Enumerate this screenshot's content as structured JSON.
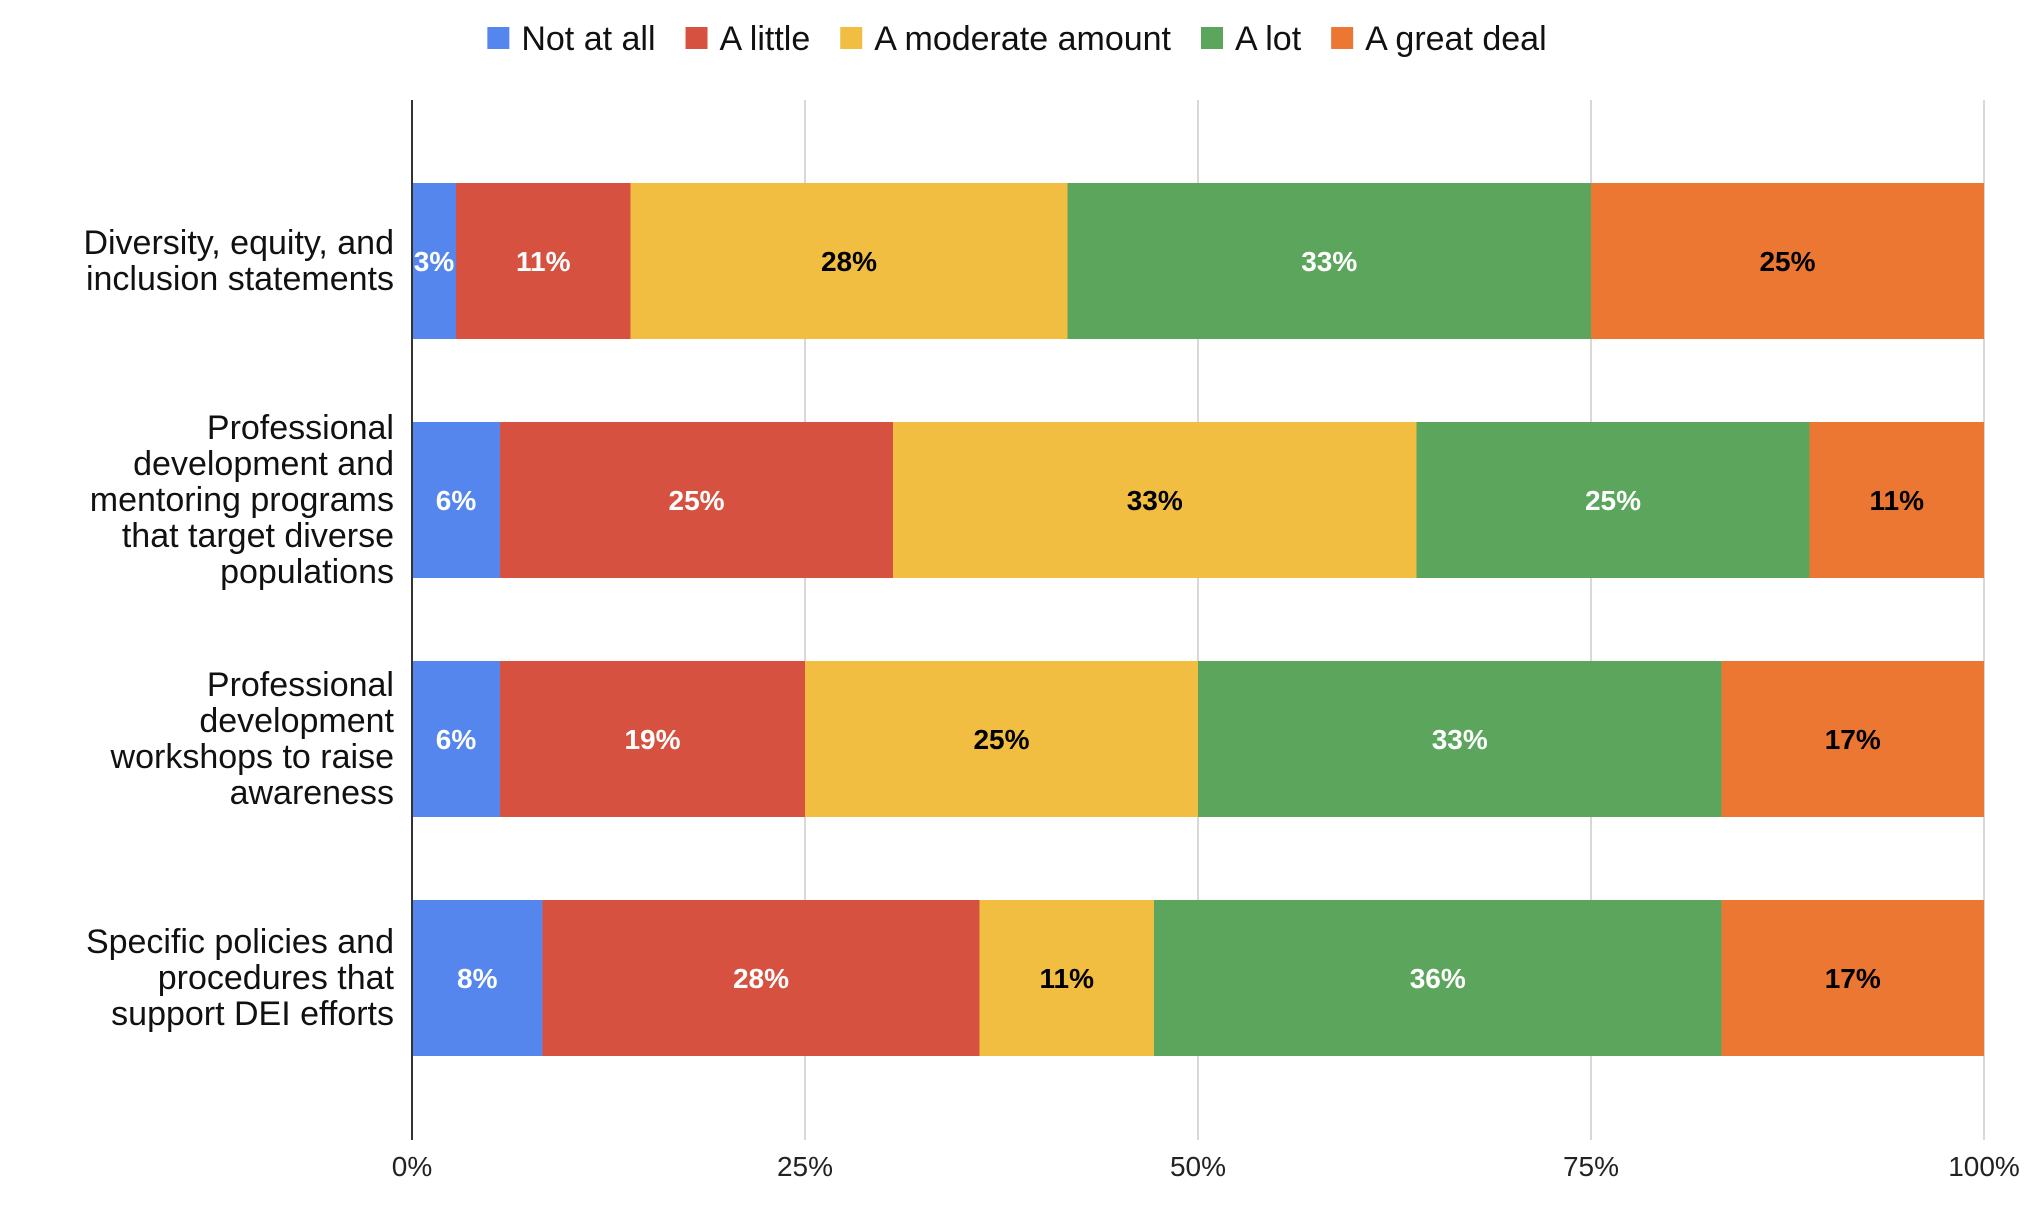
{
  "chart_data": {
    "type": "bar",
    "orientation": "horizontal",
    "stacked": true,
    "normalized": true,
    "title": "",
    "xlabel": "",
    "ylabel": "",
    "xlim": [
      0,
      100
    ],
    "x_ticks": [
      {
        "value": 0,
        "label": "0%"
      },
      {
        "value": 25,
        "label": "25%"
      },
      {
        "value": 50,
        "label": "50%"
      },
      {
        "value": 75,
        "label": "75%"
      },
      {
        "value": 100,
        "label": "100%"
      }
    ],
    "grid": true,
    "legend_position": "top",
    "categories": [
      {
        "label": "Diversity, equity, and inclusion statements"
      },
      {
        "label": "Professional development and mentoring programs that target diverse populations"
      },
      {
        "label": "Professional development workshops to raise awareness"
      },
      {
        "label": "Specific policies and procedures that support DEI efforts"
      }
    ],
    "series": [
      {
        "name": "Not at all",
        "color": "#5586EE",
        "label_color": "#ffffff",
        "values": [
          2.8,
          5.6,
          5.6,
          8.3
        ],
        "labels": [
          "3%",
          "6%",
          "6%",
          "8%"
        ]
      },
      {
        "name": "A little",
        "color": "#D65140",
        "label_color": "#ffffff",
        "values": [
          11.1,
          25.0,
          19.4,
          27.8
        ],
        "labels": [
          "11%",
          "25%",
          "19%",
          "28%"
        ]
      },
      {
        "name": "A moderate amount",
        "color": "#F1BE42",
        "label_color": "#000000",
        "values": [
          27.8,
          33.3,
          25.0,
          11.1
        ],
        "labels": [
          "28%",
          "33%",
          "25%",
          "11%"
        ]
      },
      {
        "name": "A lot",
        "color": "#5BA55C",
        "label_color": "#ffffff",
        "values": [
          33.3,
          25.0,
          33.3,
          36.1
        ],
        "labels": [
          "33%",
          "25%",
          "33%",
          "36%"
        ]
      },
      {
        "name": "A great deal",
        "color": "#EC7733",
        "label_color": "#000000",
        "values": [
          25.0,
          11.1,
          16.7,
          16.7
        ],
        "labels": [
          "25%",
          "11%",
          "17%",
          "17%"
        ]
      }
    ]
  }
}
